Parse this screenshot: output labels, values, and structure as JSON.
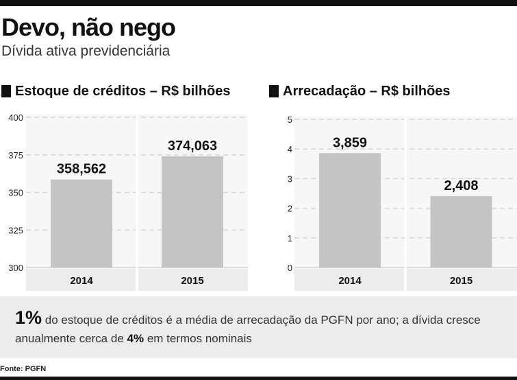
{
  "title": "Devo, não nego",
  "subtitle": "Dívida ativa previdenciária",
  "note": {
    "highlight": "1%",
    "text_1": "do estoque de créditos é a média de arrecadação da PGFN por ano; a dívida cresce anualmente cerca de",
    "bold": "4%",
    "text_2": "em termos nominais"
  },
  "source": "Fonte: PGFN",
  "colors": {
    "bar": "#c4c4c4",
    "panel": "#ececec",
    "grid": "#d6d6d6",
    "text": "#111111"
  },
  "chart_data": [
    {
      "type": "bar",
      "title": "Estoque de créditos – R$ bilhões",
      "categories": [
        "2014",
        "2015"
      ],
      "values": [
        358.562,
        374.063
      ],
      "value_labels": [
        "358,562",
        "374,063"
      ],
      "ylim": [
        300,
        400
      ],
      "yticks": [
        300,
        325,
        350,
        375,
        400
      ],
      "grid": true
    },
    {
      "type": "bar",
      "title": "Arrecadação – R$ bilhões",
      "categories": [
        "2014",
        "2015"
      ],
      "values": [
        3.859,
        2.408
      ],
      "value_labels": [
        "3,859",
        "2,408"
      ],
      "ylim": [
        0,
        5
      ],
      "yticks": [
        0,
        1,
        2,
        3,
        4,
        5
      ],
      "grid": true
    }
  ]
}
